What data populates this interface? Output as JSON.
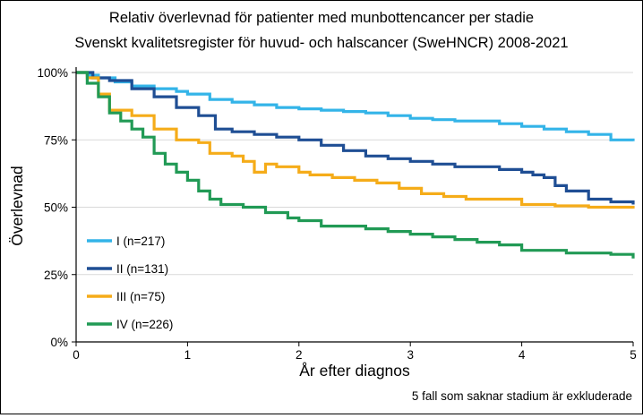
{
  "chart_data": {
    "type": "line",
    "title": "Relativ överlevnad för patienter med munbottencancer per stadie",
    "subtitle": "Svenskt kvalitetsregister för huvud- och halscancer (SweHNCR) 2008-2021",
    "xlabel": "År efter diagnos",
    "ylabel": "Överlevnad",
    "footnote": "5 fall som saknar stadium är exkluderade",
    "xlim": [
      0,
      5
    ],
    "ylim": [
      0,
      100
    ],
    "x_ticks": [
      "0",
      "1",
      "2",
      "3",
      "4",
      "5"
    ],
    "y_ticks": [
      "0%",
      "25%",
      "50%",
      "75%",
      "100%"
    ],
    "grid": "horizontal",
    "legend_position": "left",
    "series": [
      {
        "name": "I (n=217)",
        "color": "#33b4e8",
        "points": [
          [
            0,
            100
          ],
          [
            0.1,
            99
          ],
          [
            0.2,
            98
          ],
          [
            0.35,
            96.5
          ],
          [
            0.5,
            95
          ],
          [
            0.7,
            94
          ],
          [
            0.9,
            93
          ],
          [
            1.0,
            92
          ],
          [
            1.2,
            90
          ],
          [
            1.4,
            89
          ],
          [
            1.6,
            88
          ],
          [
            1.8,
            87
          ],
          [
            2.0,
            86.5
          ],
          [
            2.2,
            86
          ],
          [
            2.4,
            85.5
          ],
          [
            2.6,
            85
          ],
          [
            2.8,
            84
          ],
          [
            3.0,
            83
          ],
          [
            3.2,
            82.5
          ],
          [
            3.4,
            82
          ],
          [
            3.6,
            82
          ],
          [
            3.8,
            81
          ],
          [
            4.0,
            80
          ],
          [
            4.2,
            79
          ],
          [
            4.4,
            78
          ],
          [
            4.6,
            77
          ],
          [
            4.8,
            75
          ],
          [
            5.0,
            74.5
          ]
        ]
      },
      {
        "name": "II (n=131)",
        "color": "#1f4e94",
        "points": [
          [
            0,
            100
          ],
          [
            0.15,
            98
          ],
          [
            0.3,
            97
          ],
          [
            0.5,
            94
          ],
          [
            0.7,
            91
          ],
          [
            0.9,
            87
          ],
          [
            1.1,
            84
          ],
          [
            1.25,
            79
          ],
          [
            1.4,
            78
          ],
          [
            1.6,
            77
          ],
          [
            1.8,
            76
          ],
          [
            2.0,
            75
          ],
          [
            2.2,
            73
          ],
          [
            2.4,
            71
          ],
          [
            2.6,
            69
          ],
          [
            2.8,
            68
          ],
          [
            3.0,
            67
          ],
          [
            3.2,
            66
          ],
          [
            3.4,
            65
          ],
          [
            3.6,
            65
          ],
          [
            3.8,
            64
          ],
          [
            4.0,
            63
          ],
          [
            4.1,
            62
          ],
          [
            4.2,
            61
          ],
          [
            4.3,
            58
          ],
          [
            4.4,
            56
          ],
          [
            4.6,
            53
          ],
          [
            4.8,
            52
          ],
          [
            5.0,
            51
          ]
        ]
      },
      {
        "name": "III (n=75)",
        "color": "#f5ac19",
        "points": [
          [
            0,
            100
          ],
          [
            0.1,
            98
          ],
          [
            0.2,
            92
          ],
          [
            0.3,
            86
          ],
          [
            0.5,
            84
          ],
          [
            0.7,
            79
          ],
          [
            0.9,
            75
          ],
          [
            1.1,
            74
          ],
          [
            1.2,
            70
          ],
          [
            1.4,
            69
          ],
          [
            1.5,
            67
          ],
          [
            1.6,
            63
          ],
          [
            1.7,
            66
          ],
          [
            1.8,
            65
          ],
          [
            2.0,
            63
          ],
          [
            2.1,
            62
          ],
          [
            2.3,
            61
          ],
          [
            2.5,
            60
          ],
          [
            2.7,
            59
          ],
          [
            2.9,
            57
          ],
          [
            3.1,
            55
          ],
          [
            3.3,
            54
          ],
          [
            3.5,
            53
          ],
          [
            3.8,
            53
          ],
          [
            4.0,
            51
          ],
          [
            4.3,
            50.5
          ],
          [
            4.6,
            50
          ],
          [
            5.0,
            49.5
          ]
        ]
      },
      {
        "name": "IV (n=226)",
        "color": "#219a55",
        "points": [
          [
            0,
            100
          ],
          [
            0.1,
            96
          ],
          [
            0.2,
            91
          ],
          [
            0.3,
            85
          ],
          [
            0.4,
            82
          ],
          [
            0.5,
            79
          ],
          [
            0.6,
            76
          ],
          [
            0.7,
            70
          ],
          [
            0.8,
            66
          ],
          [
            0.9,
            63
          ],
          [
            1.0,
            60
          ],
          [
            1.1,
            56
          ],
          [
            1.2,
            53
          ],
          [
            1.3,
            51
          ],
          [
            1.5,
            50
          ],
          [
            1.7,
            48
          ],
          [
            1.9,
            46
          ],
          [
            2.0,
            45
          ],
          [
            2.2,
            43
          ],
          [
            2.4,
            43
          ],
          [
            2.6,
            42
          ],
          [
            2.8,
            41
          ],
          [
            3.0,
            40
          ],
          [
            3.2,
            39
          ],
          [
            3.4,
            38
          ],
          [
            3.6,
            37
          ],
          [
            3.8,
            36
          ],
          [
            4.0,
            34
          ],
          [
            4.2,
            34
          ],
          [
            4.4,
            33
          ],
          [
            4.6,
            33
          ],
          [
            4.8,
            32.5
          ],
          [
            5.0,
            31
          ]
        ]
      }
    ]
  }
}
